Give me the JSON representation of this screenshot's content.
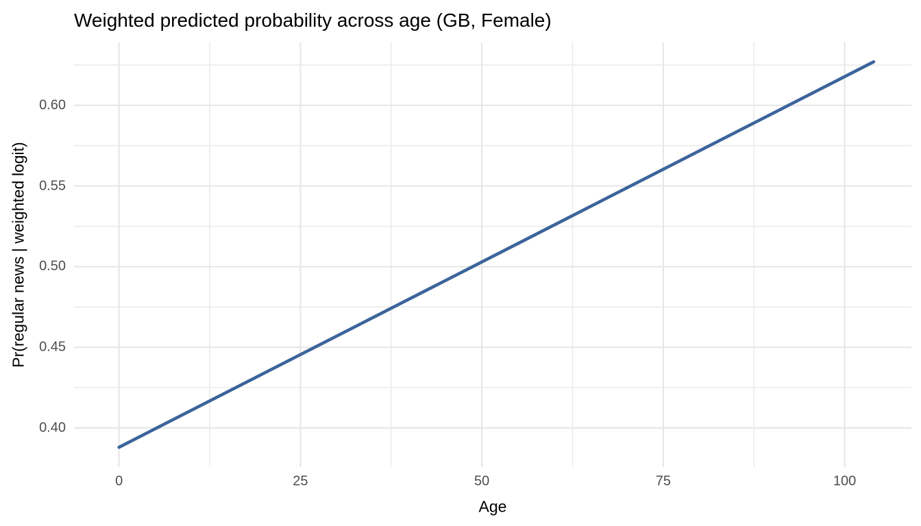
{
  "chart_data": {
    "type": "line",
    "title": "Weighted predicted probability across age (GB, Female)",
    "xlabel": "Age",
    "ylabel": "Pr(regular news | weighted logit)",
    "x_axis": {
      "tick_values": [
        0,
        25,
        50,
        75,
        100
      ],
      "tick_labels": [
        "0",
        "25",
        "50",
        "75",
        "100"
      ],
      "minor_ticks": [
        12.5,
        37.5,
        62.5,
        87.5
      ],
      "lim": [
        -6.2,
        109.2
      ]
    },
    "y_axis": {
      "tick_values": [
        0.4,
        0.45,
        0.5,
        0.55,
        0.6
      ],
      "tick_labels": [
        "0.40",
        "0.45",
        "0.50",
        "0.55",
        "0.60"
      ],
      "minor_ticks": [
        0.425,
        0.475,
        0.525,
        0.575,
        0.625
      ],
      "lim": [
        0.3757,
        0.639
      ]
    },
    "grid": "major-and-minor",
    "legend": "none",
    "series": [
      {
        "name": "weighted-predicted-probability",
        "x": [
          0,
          104
        ],
        "y": [
          0.388,
          0.627
        ],
        "color": "#3C649B",
        "stroke_width": 4.6
      }
    ],
    "colors": {
      "background": "#FFFFFF",
      "grid_major": "#E7E7E7",
      "grid_minor": "#EDEDED",
      "tick_text": "#4D4D4D",
      "axis_title_text": "#000000",
      "title_text": "#000000",
      "line": "#3C649B"
    }
  }
}
